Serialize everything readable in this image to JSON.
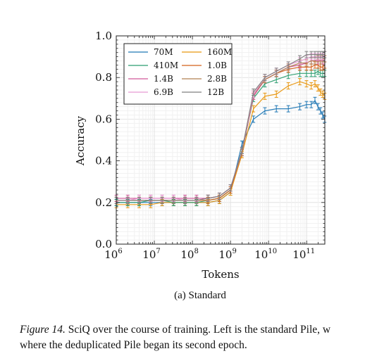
{
  "chart_data": {
    "type": "line",
    "xlabel": "Tokens",
    "ylabel": "Accuracy",
    "x_scale": "log",
    "xlim": [
      1000000,
      300000000000
    ],
    "ylim": [
      0.0,
      1.0
    ],
    "x_ticks": [
      {
        "value": 1000000,
        "mantissa": "10",
        "exp": "6"
      },
      {
        "value": 10000000,
        "mantissa": "10",
        "exp": "7"
      },
      {
        "value": 100000000,
        "mantissa": "10",
        "exp": "8"
      },
      {
        "value": 1000000000,
        "mantissa": "10",
        "exp": "9"
      },
      {
        "value": 10000000000,
        "mantissa": "10",
        "exp": "10"
      },
      {
        "value": 100000000000,
        "mantissa": "10",
        "exp": "11"
      }
    ],
    "y_ticks": [
      "0.0",
      "0.2",
      "0.4",
      "0.6",
      "0.8",
      "1.0"
    ],
    "grid": true,
    "legend_position": "top-left",
    "x": [
      1000000,
      2000000,
      4000000,
      8000000,
      16000000,
      32000000,
      64000000,
      128000000,
      256000000,
      512000000,
      1000000000,
      2000000000,
      4000000000,
      8000000000,
      16000000000,
      33000000000,
      66000000000,
      99000000000,
      132000000000,
      165000000000,
      198000000000,
      231000000000,
      264000000000,
      297000000000
    ],
    "series": [
      {
        "name": "70M",
        "color": "#1f77b4",
        "values": [
          0.2,
          0.2,
          0.2,
          0.2,
          0.2,
          0.2,
          0.2,
          0.2,
          0.2,
          0.21,
          0.25,
          0.48,
          0.6,
          0.64,
          0.65,
          0.65,
          0.66,
          0.67,
          0.67,
          0.69,
          0.66,
          0.64,
          0.62,
          0.6
        ]
      },
      {
        "name": "160M",
        "color": "#e8960e",
        "values": [
          0.19,
          0.19,
          0.19,
          0.19,
          0.2,
          0.2,
          0.2,
          0.2,
          0.2,
          0.21,
          0.25,
          0.43,
          0.65,
          0.71,
          0.72,
          0.76,
          0.78,
          0.77,
          0.76,
          0.77,
          0.75,
          0.73,
          0.72,
          0.71
        ]
      },
      {
        "name": "410M",
        "color": "#2a9d6f",
        "values": [
          0.2,
          0.2,
          0.2,
          0.21,
          0.21,
          0.2,
          0.2,
          0.2,
          0.21,
          0.22,
          0.26,
          0.45,
          0.7,
          0.77,
          0.79,
          0.81,
          0.82,
          0.82,
          0.82,
          0.82,
          0.83,
          0.82,
          0.82,
          0.82
        ]
      },
      {
        "name": "1.0B",
        "color": "#d4601a",
        "values": [
          0.21,
          0.21,
          0.21,
          0.21,
          0.21,
          0.21,
          0.21,
          0.21,
          0.21,
          0.22,
          0.26,
          0.44,
          0.71,
          0.79,
          0.82,
          0.84,
          0.85,
          0.85,
          0.85,
          0.86,
          0.86,
          0.85,
          0.85,
          0.86
        ]
      },
      {
        "name": "1.4B",
        "color": "#d0579a",
        "values": [
          0.22,
          0.22,
          0.22,
          0.22,
          0.22,
          0.22,
          0.22,
          0.22,
          0.22,
          0.23,
          0.27,
          0.44,
          0.71,
          0.79,
          0.82,
          0.85,
          0.86,
          0.87,
          0.88,
          0.88,
          0.88,
          0.88,
          0.88,
          0.89
        ]
      },
      {
        "name": "2.8B",
        "color": "#b08050",
        "values": [
          0.21,
          0.21,
          0.21,
          0.21,
          0.21,
          0.21,
          0.21,
          0.21,
          0.22,
          0.23,
          0.27,
          0.44,
          0.72,
          0.79,
          0.82,
          0.85,
          0.87,
          0.87,
          0.88,
          0.88,
          0.89,
          0.88,
          0.89,
          0.89
        ]
      },
      {
        "name": "6.9B",
        "color": "#e89ad3",
        "values": [
          0.21,
          0.21,
          0.22,
          0.22,
          0.22,
          0.22,
          0.21,
          0.21,
          0.22,
          0.23,
          0.27,
          0.45,
          0.72,
          0.8,
          0.83,
          0.86,
          0.88,
          0.89,
          0.9,
          0.9,
          0.9,
          0.9,
          0.9,
          0.91
        ]
      },
      {
        "name": "12B",
        "color": "#7f7f7f",
        "values": [
          0.21,
          0.21,
          0.21,
          0.21,
          0.21,
          0.21,
          0.21,
          0.21,
          0.22,
          0.23,
          0.27,
          0.45,
          0.73,
          0.8,
          0.83,
          0.86,
          0.89,
          0.91,
          0.91,
          0.91,
          0.91,
          0.91,
          0.91,
          0.91
        ]
      }
    ]
  },
  "subcaption": "(a) Standard",
  "caption": {
    "figure_label": "Figure 14.",
    "line1_rest": " SciQ over the course of training. Left is the standard Pile, w",
    "line2": "where the deduplicated Pile began its second epoch."
  }
}
